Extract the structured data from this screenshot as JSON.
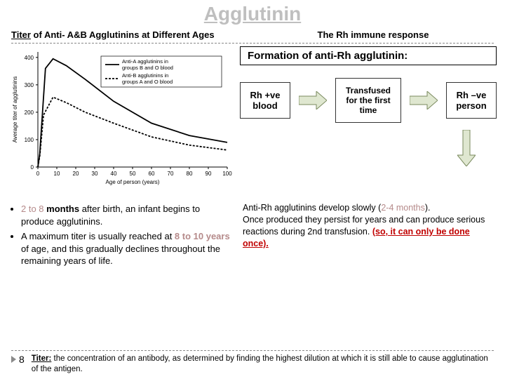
{
  "title": "Agglutinin",
  "subtitle_left_under": "Titer",
  "subtitle_left_rest": " of Anti- A&B Agglutinins at Different Ages",
  "subtitle_right": "The Rh immune response",
  "formation": "Formation of anti-Rh agglutinin:",
  "flow": {
    "a": "Rh +ve blood",
    "b": "Transfused for the first time",
    "c": "Rh –ve person"
  },
  "chart": {
    "ylabel": "Average titer of agglutinins",
    "xlabel": "Age of person (years)",
    "yticks": [
      0,
      100,
      200,
      300,
      400
    ],
    "xticks": [
      0,
      10,
      20,
      30,
      40,
      50,
      60,
      70,
      80,
      90,
      100
    ],
    "legend1": "Anti-A agglutinins in groups B and O blood",
    "legend2": "Anti-B agglutinins in groups A and O blood",
    "series1": [
      [
        0,
        0
      ],
      [
        1,
        50
      ],
      [
        4,
        360
      ],
      [
        8,
        395
      ],
      [
        15,
        370
      ],
      [
        25,
        320
      ],
      [
        40,
        240
      ],
      [
        60,
        160
      ],
      [
        80,
        115
      ],
      [
        100,
        90
      ]
    ],
    "series2": [
      [
        0,
        0
      ],
      [
        1,
        40
      ],
      [
        3,
        190
      ],
      [
        8,
        255
      ],
      [
        15,
        235
      ],
      [
        25,
        200
      ],
      [
        40,
        160
      ],
      [
        60,
        110
      ],
      [
        80,
        80
      ],
      [
        100,
        62
      ]
    ]
  },
  "bullets": {
    "b1a": "2 to 8 ",
    "b1m": "months",
    "b1b": " after birth, an infant begins to produce agglutinins.",
    "b2a": "A maximum titer is usually reached at ",
    "b2m": "8 to 10 years",
    "b2b": " of age, and this gradually declines throughout the remaining years of life."
  },
  "anti_rh": {
    "l1a": "Anti-Rh agglutinins develop slowly (",
    "l1b": "2-4 months",
    "l1c": ").",
    "l2": "Once produced they persist for years and can produce serious reactions during 2nd transfusion. ",
    "l2red": "(so, it can only be done once)."
  },
  "page": "8",
  "footer_term": "Titer:",
  "footer_rest": " the concentration of an antibody, as determined by finding the highest dilution at which it is still able to cause agglutination of the antigen.",
  "colors": {
    "series1": "#000",
    "series2": "#000",
    "arrow_fill": "#dfe7d0",
    "arrow_stroke": "#7a8a5e"
  }
}
